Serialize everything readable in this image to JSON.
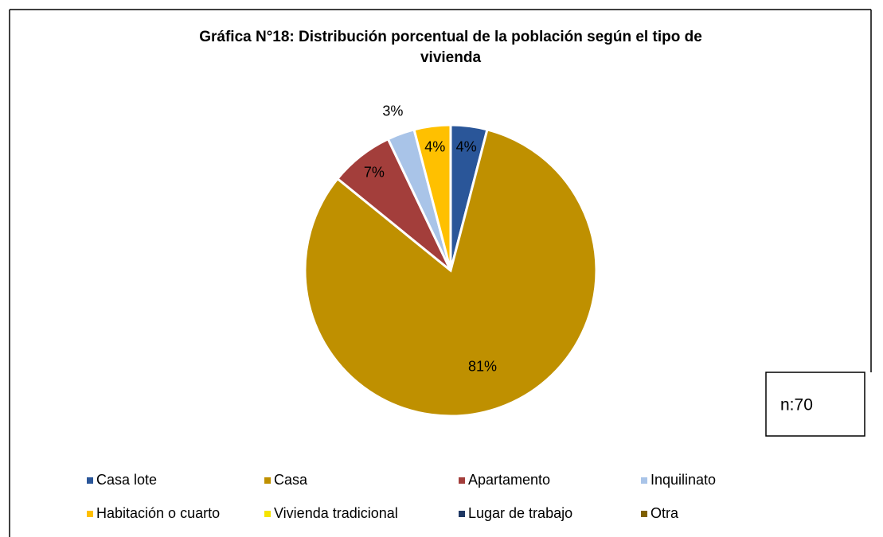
{
  "chart_data": {
    "type": "pie",
    "title": "Gráfica N°18: Distribución porcentual de la población según el tipo de vivienda",
    "categories": [
      "Casa lote",
      "Casa",
      "Apartamento",
      "Inquilinato",
      "Habitación o cuarto",
      "Vivienda tradicional",
      "Lugar de trabajo",
      "Otra"
    ],
    "values": [
      4,
      81,
      7,
      3,
      4,
      0,
      0,
      0
    ],
    "value_labels": [
      "4%",
      "81%",
      "7%",
      "3%",
      "4%",
      null,
      null,
      null
    ],
    "colors": [
      "#2a5699",
      "#bf9000",
      "#a33e3b",
      "#a9c4e8",
      "#ffc000",
      "#f5e400",
      "#1f3864",
      "#7f6000"
    ],
    "legend": "bottom",
    "annotation": "n:70"
  }
}
